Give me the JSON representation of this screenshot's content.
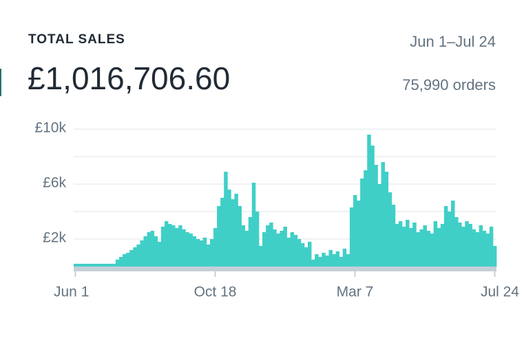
{
  "chart_data": {
    "type": "bar",
    "title": "TOTAL SALES",
    "total": "£1,016,706.60",
    "date_range": "Jun 1–Jul 24",
    "orders": "75,990 orders",
    "color": "#40cfc7",
    "grid": true,
    "ylim": [
      0,
      10000
    ],
    "yticks": [
      {
        "value": 2000,
        "label": "£2k"
      },
      {
        "value": 4000,
        "label": null
      },
      {
        "value": 6000,
        "label": "£6k"
      },
      {
        "value": 8000,
        "label": null
      },
      {
        "value": 10000,
        "label": "£10k"
      }
    ],
    "categories": [
      "Jun 1",
      null,
      null,
      null,
      null,
      null,
      null,
      null,
      null,
      null,
      null,
      null,
      null,
      null,
      null,
      null,
      null,
      null,
      null,
      null,
      null,
      null,
      null,
      null,
      null,
      null,
      null,
      null,
      null,
      null,
      null,
      null,
      null,
      null,
      null,
      null,
      null,
      null,
      null,
      null,
      "Oct 18",
      null,
      null,
      null,
      null,
      null,
      null,
      null,
      null,
      null,
      null,
      null,
      null,
      null,
      null,
      null,
      null,
      null,
      null,
      null,
      null,
      null,
      null,
      null,
      null,
      null,
      null,
      null,
      null,
      null,
      null,
      null,
      null,
      null,
      null,
      null,
      null,
      null,
      null,
      null,
      "Mar 7",
      null,
      null,
      null,
      null,
      null,
      null,
      null,
      null,
      null,
      null,
      null,
      null,
      null,
      null,
      null,
      null,
      null,
      null,
      null,
      null,
      null,
      null,
      null,
      null,
      null,
      null,
      null,
      null,
      null,
      null,
      null,
      null,
      null,
      null,
      null,
      null,
      null,
      null,
      null,
      "Jul 24"
    ],
    "values": [
      200,
      200,
      200,
      200,
      200,
      200,
      200,
      200,
      200,
      200,
      200,
      200,
      500,
      700,
      900,
      1000,
      1200,
      1400,
      1600,
      1900,
      2200,
      2500,
      2600,
      2200,
      1800,
      2900,
      3300,
      3100,
      3000,
      2800,
      3000,
      2700,
      2500,
      2400,
      2200,
      2000,
      1900,
      2100,
      1600,
      2000,
      2800,
      4400,
      5000,
      6900,
      5600,
      4900,
      5300,
      4400,
      3000,
      2600,
      3600,
      6100,
      4000,
      1500,
      2500,
      3000,
      3200,
      2700,
      2400,
      2600,
      2900,
      2100,
      2500,
      2300,
      2000,
      1700,
      1400,
      1800,
      500,
      900,
      700,
      1000,
      800,
      1200,
      900,
      1100,
      700,
      1300,
      900,
      4300,
      5200,
      4800,
      6400,
      7000,
      9600,
      8800,
      7400,
      6000,
      7600,
      6900,
      5400,
      4500,
      3100,
      3300,
      2900,
      3400,
      2800,
      3200,
      2500,
      2700,
      3000,
      2600,
      2400,
      3300,
      2800,
      3100,
      4400,
      4000,
      4800,
      3600,
      3200,
      2900,
      3300,
      3100,
      2700,
      2500,
      3000,
      2600,
      2400,
      2900,
      1500
    ]
  }
}
